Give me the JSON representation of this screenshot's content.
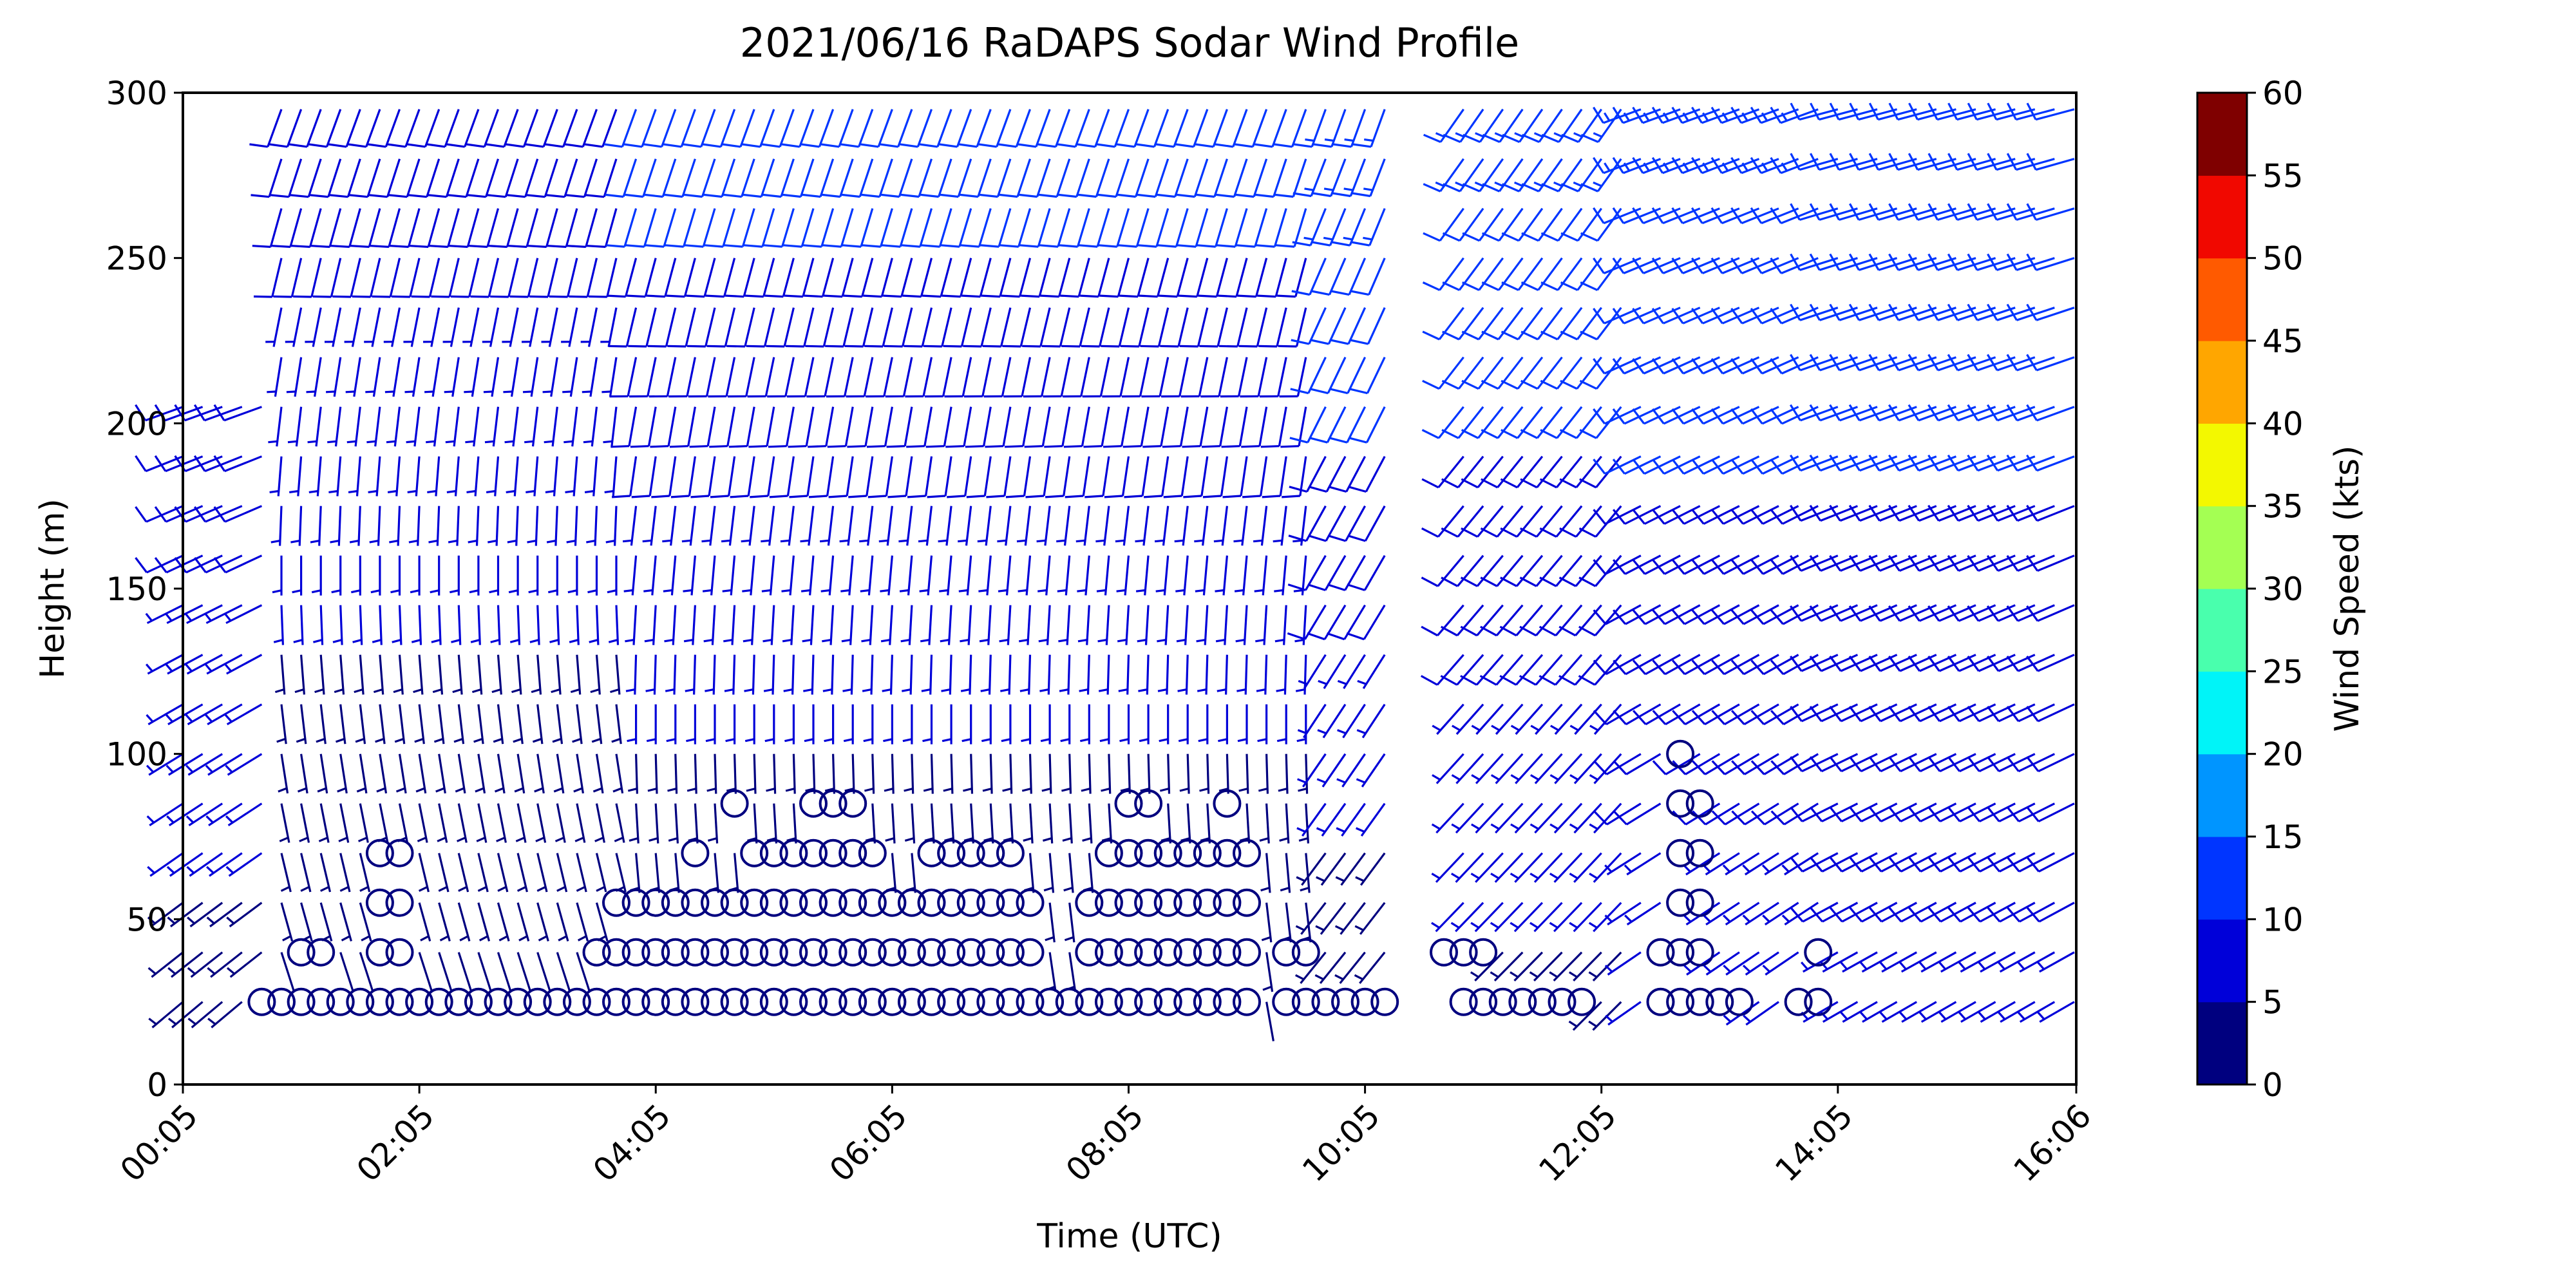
{
  "chart_data": {
    "type": "wind_barb_profile",
    "title": "2021/06/16 RaDAPS Sodar Wind Profile",
    "xlabel": "Time (UTC)",
    "ylabel": "Height (m)",
    "xlim": [
      "00:05",
      "16:06"
    ],
    "ylim": [
      0,
      300
    ],
    "x_ticks": [
      "00:05",
      "02:05",
      "04:05",
      "06:05",
      "08:05",
      "10:05",
      "12:05",
      "14:05",
      "16:06"
    ],
    "y_ticks": [
      "0",
      "50",
      "100",
      "150",
      "200",
      "250",
      "300"
    ],
    "heights_m": [
      25,
      40,
      55,
      70,
      85,
      100,
      115,
      130,
      145,
      160,
      175,
      190,
      205,
      220,
      235,
      250,
      265,
      280,
      295
    ],
    "time_step_minutes": 10,
    "calm_marker": "circle",
    "segments": [
      {
        "start": "00:05",
        "end": "00:55",
        "min_height": 25,
        "max_height": 205,
        "dir_low": 230,
        "dir_high": 250,
        "speed_low": 4,
        "speed_high": 9
      },
      {
        "start": "00:55",
        "end": "03:55",
        "min_height": 25,
        "max_height": 295,
        "dir_low": 160,
        "dir_high": 200,
        "speed_low": 2,
        "speed_high": 9
      },
      {
        "start": "03:55",
        "end": "09:45",
        "min_height": 25,
        "max_height": 295,
        "dir_low": 170,
        "dir_high": 200,
        "speed_low": 2,
        "speed_high": 11
      },
      {
        "start": "09:45",
        "end": "10:25",
        "min_height": 25,
        "max_height": 295,
        "dir_low": 220,
        "dir_high": 200,
        "speed_low": 3,
        "speed_high": 14
      },
      {
        "start": "10:55",
        "end": "12:25",
        "min_height": 25,
        "max_height": 295,
        "dir_low": 225,
        "dir_high": 215,
        "speed_low": 4,
        "speed_high": 13
      },
      {
        "start": "12:25",
        "end": "14:05",
        "min_height": 25,
        "max_height": 295,
        "dir_low": 235,
        "dir_high": 250,
        "speed_low": 6,
        "speed_high": 13
      },
      {
        "start": "14:05",
        "end": "16:06",
        "min_height": 25,
        "max_height": 295,
        "dir_low": 240,
        "dir_high": 255,
        "speed_low": 7,
        "speed_high": 12
      }
    ],
    "calm_regions": [
      {
        "height": 25,
        "start": "00:45",
        "end": "02:25"
      },
      {
        "height": 25,
        "start": "02:35",
        "end": "09:05"
      },
      {
        "height": 25,
        "start": "09:25",
        "end": "10:15"
      },
      {
        "height": 25,
        "start": "10:55",
        "end": "11:55"
      },
      {
        "height": 25,
        "start": "12:35",
        "end": "13:15"
      },
      {
        "height": 25,
        "start": "13:45",
        "end": "13:55"
      },
      {
        "height": 40,
        "start": "01:05",
        "end": "01:15"
      },
      {
        "height": 40,
        "start": "01:45",
        "end": "01:55"
      },
      {
        "height": 40,
        "start": "03:35",
        "end": "07:15"
      },
      {
        "height": 40,
        "start": "07:45",
        "end": "09:05"
      },
      {
        "height": 40,
        "start": "09:25",
        "end": "09:35"
      },
      {
        "height": 40,
        "start": "10:45",
        "end": "11:05"
      },
      {
        "height": 40,
        "start": "12:35",
        "end": "12:55"
      },
      {
        "height": 40,
        "start": "13:55",
        "end": "13:55"
      },
      {
        "height": 55,
        "start": "01:45",
        "end": "01:55"
      },
      {
        "height": 55,
        "start": "03:45",
        "end": "06:05"
      },
      {
        "height": 55,
        "start": "06:15",
        "end": "07:15"
      },
      {
        "height": 55,
        "start": "07:45",
        "end": "09:05"
      },
      {
        "height": 55,
        "start": "12:45",
        "end": "12:55"
      },
      {
        "height": 70,
        "start": "01:45",
        "end": "01:55"
      },
      {
        "height": 70,
        "start": "04:25",
        "end": "04:25"
      },
      {
        "height": 70,
        "start": "04:55",
        "end": "05:55"
      },
      {
        "height": 70,
        "start": "06:25",
        "end": "07:05"
      },
      {
        "height": 70,
        "start": "07:55",
        "end": "09:05"
      },
      {
        "height": 70,
        "start": "12:45",
        "end": "12:55"
      },
      {
        "height": 85,
        "start": "04:45",
        "end": "04:45"
      },
      {
        "height": 85,
        "start": "05:25",
        "end": "05:45"
      },
      {
        "height": 85,
        "start": "08:05",
        "end": "08:15"
      },
      {
        "height": 85,
        "start": "08:55",
        "end": "08:55"
      },
      {
        "height": 85,
        "start": "12:45",
        "end": "12:55"
      },
      {
        "height": 100,
        "start": "12:45",
        "end": "12:45"
      }
    ],
    "colorbar": {
      "label": "Wind Speed (kts)",
      "ticks": [
        "0",
        "5",
        "10",
        "15",
        "20",
        "25",
        "30",
        "35",
        "40",
        "45",
        "50",
        "55",
        "60"
      ],
      "range": [
        0,
        60
      ],
      "colors": [
        "#00007f",
        "#0000d9",
        "#0035ff",
        "#0095ff",
        "#00f4f8",
        "#49ffad",
        "#a4ff53",
        "#f3f800",
        "#ffa600",
        "#ff5a00",
        "#f10800",
        "#7f0000"
      ]
    },
    "grid": false,
    "legend": "none"
  }
}
